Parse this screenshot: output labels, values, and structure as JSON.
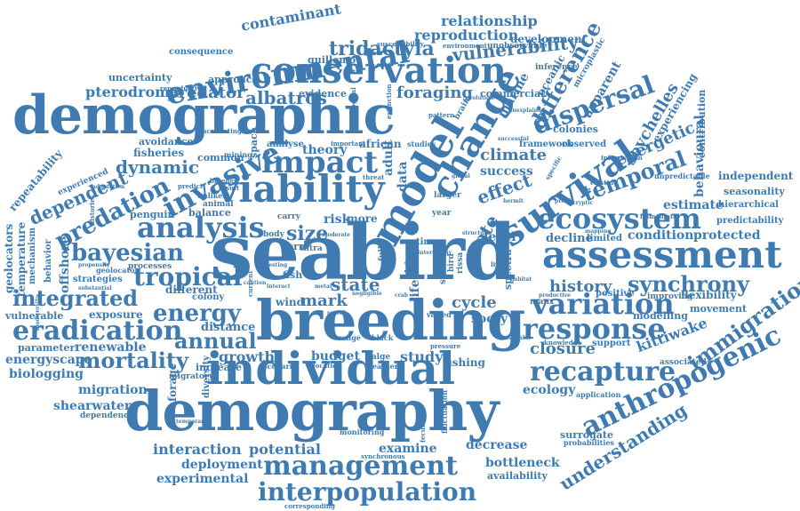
{
  "color": "#3f7bb0",
  "words": {
    "seabird": "seabird",
    "breeding": "breeding",
    "demographic": "demographic",
    "demography": "demography",
    "individual": "individual",
    "conservation": "conservation",
    "environmental": "environmental",
    "model": "model",
    "change": "change",
    "viability": "viability",
    "survival": "survival",
    "assessment": "assessment",
    "ecosystem": "ecosystem",
    "analysis": "analysis",
    "impact": "impact",
    "invasive": "invasive",
    "management": "management",
    "interpopulation": "interpopulation",
    "anthropogenic": "anthropogenic",
    "recapture": "recapture",
    "response": "response",
    "variation": "variation",
    "eradication": "eradication",
    "energy": "energy",
    "tropical": "tropical",
    "predation": "predation",
    "bayesian": "bayesian",
    "integrated": "integrated",
    "dispersal": "dispersal",
    "difference": "difference",
    "temporal": "temporal",
    "synchrony": "synchrony",
    "immigration": "immigration",
    "understanding": "understanding",
    "mortality": "mortality",
    "annual": "annual",
    "tridactyla": "tridactyla",
    "vulnerability": "vulnerability",
    "albatros": "albatros",
    "predator": "predator",
    "pterodroma": "pterodroma",
    "foraging": "foraging",
    "contaminant": "contaminant",
    "relationship": "relationship",
    "reproduction": "reproduction",
    "development": "development",
    "guillemot": "guillemot",
    "dependent": "dependent",
    "dynamic": "dynamic",
    "climate": "climate",
    "success": "success",
    "effect": "effect",
    "rate": "rate",
    "size": "size",
    "state": "state",
    "level": "level",
    "history": "history",
    "condition": "condition",
    "protected": "protected",
    "estimate": "estimate",
    "seychelles": "seychelles",
    "energetic": "energetic",
    "kittiwake": "kittiwake",
    "closure": "closure",
    "study": "study",
    "budget": "budget",
    "growth": "growth",
    "distance": "distance",
    "exposure": "exposure",
    "renewable": "renewable",
    "energyscape": "energyscape",
    "biologging": "biologging",
    "migration": "migration",
    "shearwater": "shearwater",
    "parameter": "parameter",
    "vulnerable": "vulnerable",
    "geolocators": "geolocators",
    "temperature": "temperature",
    "offshore": "offshore",
    "repeatability": "repeatability",
    "fisheries": "fisheries",
    "avoidance": "avoidance",
    "penguin": "penguin",
    "balance": "balance",
    "interaction": "interaction",
    "potential": "potential",
    "deployment": "deployment",
    "experimental": "experimental",
    "examine": "examine",
    "decrease": "decrease",
    "bottleneck": "bottleneck",
    "availability": "availability",
    "ecology": "ecology",
    "surrogate": "surrogate",
    "cycle": "cycle",
    "sooty": "sooty",
    "mark": "mark",
    "wind": "wind",
    "risk": "risk",
    "more": "more",
    "theory": "theory",
    "african": "african",
    "adult": "adult",
    "data": "data",
    "commercial": "commercial",
    "marine": "marine",
    "oceanic": "oceanic",
    "apparent": "apparent",
    "colonies": "colonies",
    "experiencing": "experiencing",
    "contribution": "contribution",
    "behavioural": "behavioural",
    "independent": "independent",
    "seasonality": "seasonality",
    "hierarchical": "hierarchical",
    "predictability": "predictability",
    "flexibility": "flexibility",
    "movement": "movement",
    "modelling": "modelling",
    "support": "support",
    "associated": "associated",
    "improving": "improving",
    "positive": "positive",
    "decline": "decline",
    "limited": "limited",
    "observed": "observed",
    "framework": "framework",
    "common": "common",
    "analyse": "analyse",
    "evidence": "evidence",
    "approach": "approach",
    "uncertainty": "uncertainty",
    "consequence": "consequence",
    "inference": "inference",
    "microplastic": "microplastic",
    "unobservable": "unobservable",
    "fishing": "fishing",
    "colony": "colony",
    "different": "different",
    "increase": "increase",
    "diversity": "diversity",
    "forage": "forage",
    "strategies": "strategies",
    "processes": "processes",
    "fish": "fish",
    "life": "life",
    "manx": "manx",
    "spectra": "spectra",
    "starlit": "starlit",
    "time": "time",
    "tern": "tern",
    "space": "space",
    "dependence": "dependence",
    "mechanism": "mechanism",
    "behavior": "behavior",
    "experienced": "experienced",
    "mining": "mining",
    "unlikely": "unlikely",
    "animal": "animal",
    "geolocator": "geolocator",
    "monitoring": "monitoring",
    "probabilities": "probabilities",
    "application": "application",
    "knowledge": "knowledge",
    "larger": "larger",
    "year": "year",
    "body": "body",
    "carry": "carry",
    "intra": "intra",
    "driver": "driver",
    "full": "full",
    "rissa": "rissa",
    "bird": "bird",
    "varied": "varied",
    "aalge": "aalge",
    "weather": "weather",
    "location": "location",
    "range": "range",
    "black": "black",
    "migratory": "migratory",
    "scenario": "scenario",
    "unpredictable": "unpredictable",
    "immediate": "immediate",
    "existing": "existing",
    "information": "information",
    "susceptibility": "susceptibility",
    "environment": "environment",
    "reproductive": "reproductive",
    "accounting": "accounting",
    "important": "important",
    "studies": "studies",
    "pattern": "pattern",
    "threat": "threat",
    "breeder": "breeder",
    "result": "result",
    "predict": "predict",
    "lived": "lived",
    "habitat": "habitat",
    "available": "available",
    "fluctuation": "fluctuation",
    "synchronous": "synchronous",
    "corresponding": "corresponding",
    "fecundity": "fecundity",
    "pressure": "pressure",
    "cryptic": "cryptic",
    "hermit": "hermit",
    "mapping": "mapping",
    "profile": "profile",
    "global": "global",
    "brain": "brain",
    "evolution": "evolution",
    "extinction": "extinction",
    "ecological": "ecological",
    "specific": "specific",
    "successful": "successful",
    "structure": "structure",
    "productive": "productive",
    "intercolony": "intercolony",
    "moderate": "moderate",
    "nesting": "nesting",
    "temporary": "temporary",
    "substantial": "substantial",
    "propensity": "propensity",
    "histories": "histories",
    "biodiversity": "biodiversity",
    "adaptation": "adaptation",
    "unexplained": "unexplained",
    "negligible": "negligible",
    "interact": "interact",
    "metal": "metal",
    "reveal": "reveal",
    "crab": "crab",
    "current": "current",
    "caution": "caution"
  }
}
